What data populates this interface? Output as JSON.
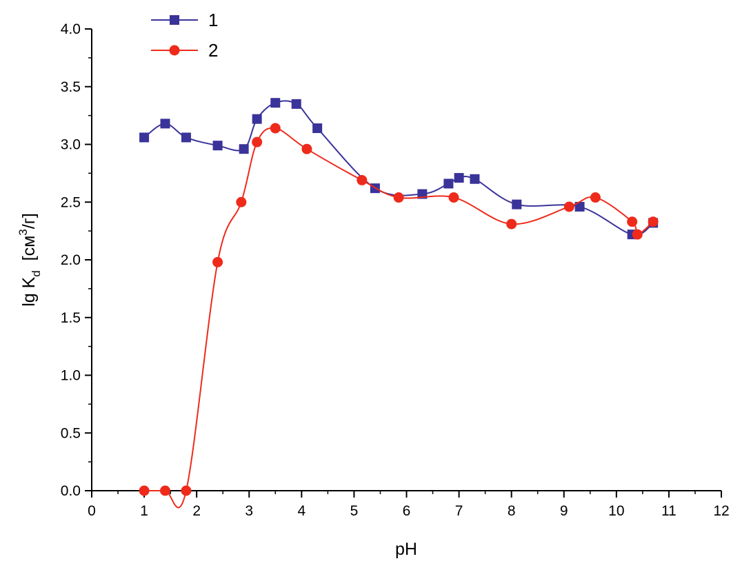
{
  "chart_data": {
    "type": "line",
    "xlabel": "pH",
    "ylabel": {
      "main": "lg K",
      "sub": "d",
      "unit_open": "[см",
      "unit_sup": "3",
      "unit_close": "/г]"
    },
    "xlim": [
      0,
      12
    ],
    "ylim": [
      0.0,
      4.0
    ],
    "x_ticks": [
      "0",
      "1",
      "2",
      "3",
      "4",
      "5",
      "6",
      "7",
      "8",
      "9",
      "10",
      "11",
      "12"
    ],
    "y_ticks": [
      "0.0",
      "0.5",
      "1.0",
      "1.5",
      "2.0",
      "2.5",
      "3.0",
      "3.5",
      "4.0"
    ],
    "grid": false,
    "legend_position": "top-left",
    "series": [
      {
        "name": "1",
        "marker": "square",
        "color": "#3a3399",
        "points": [
          [
            1.0,
            3.06
          ],
          [
            1.4,
            3.18
          ],
          [
            1.8,
            3.06
          ],
          [
            2.4,
            2.99
          ],
          [
            2.9,
            2.96
          ],
          [
            3.15,
            3.22
          ],
          [
            3.5,
            3.36
          ],
          [
            3.9,
            3.35
          ],
          [
            4.3,
            3.14
          ],
          [
            5.4,
            2.62
          ],
          [
            6.3,
            2.57
          ],
          [
            6.8,
            2.66
          ],
          [
            7.0,
            2.71
          ],
          [
            7.3,
            2.7
          ],
          [
            8.1,
            2.48
          ],
          [
            9.3,
            2.46
          ],
          [
            10.3,
            2.22
          ],
          [
            10.7,
            2.32
          ]
        ]
      },
      {
        "name": "2",
        "marker": "circle",
        "color": "#ee2a1b",
        "points": [
          [
            1.0,
            0.0
          ],
          [
            1.4,
            0.0
          ],
          [
            1.8,
            0.0
          ],
          [
            2.4,
            1.98
          ],
          [
            2.85,
            2.5
          ],
          [
            3.15,
            3.02
          ],
          [
            3.5,
            3.14
          ],
          [
            4.1,
            2.96
          ],
          [
            5.15,
            2.69
          ],
          [
            5.85,
            2.54
          ],
          [
            6.9,
            2.54
          ],
          [
            8.0,
            2.31
          ],
          [
            9.1,
            2.46
          ],
          [
            9.6,
            2.54
          ],
          [
            10.3,
            2.33
          ],
          [
            10.4,
            2.22
          ],
          [
            10.7,
            2.33
          ]
        ]
      }
    ]
  }
}
